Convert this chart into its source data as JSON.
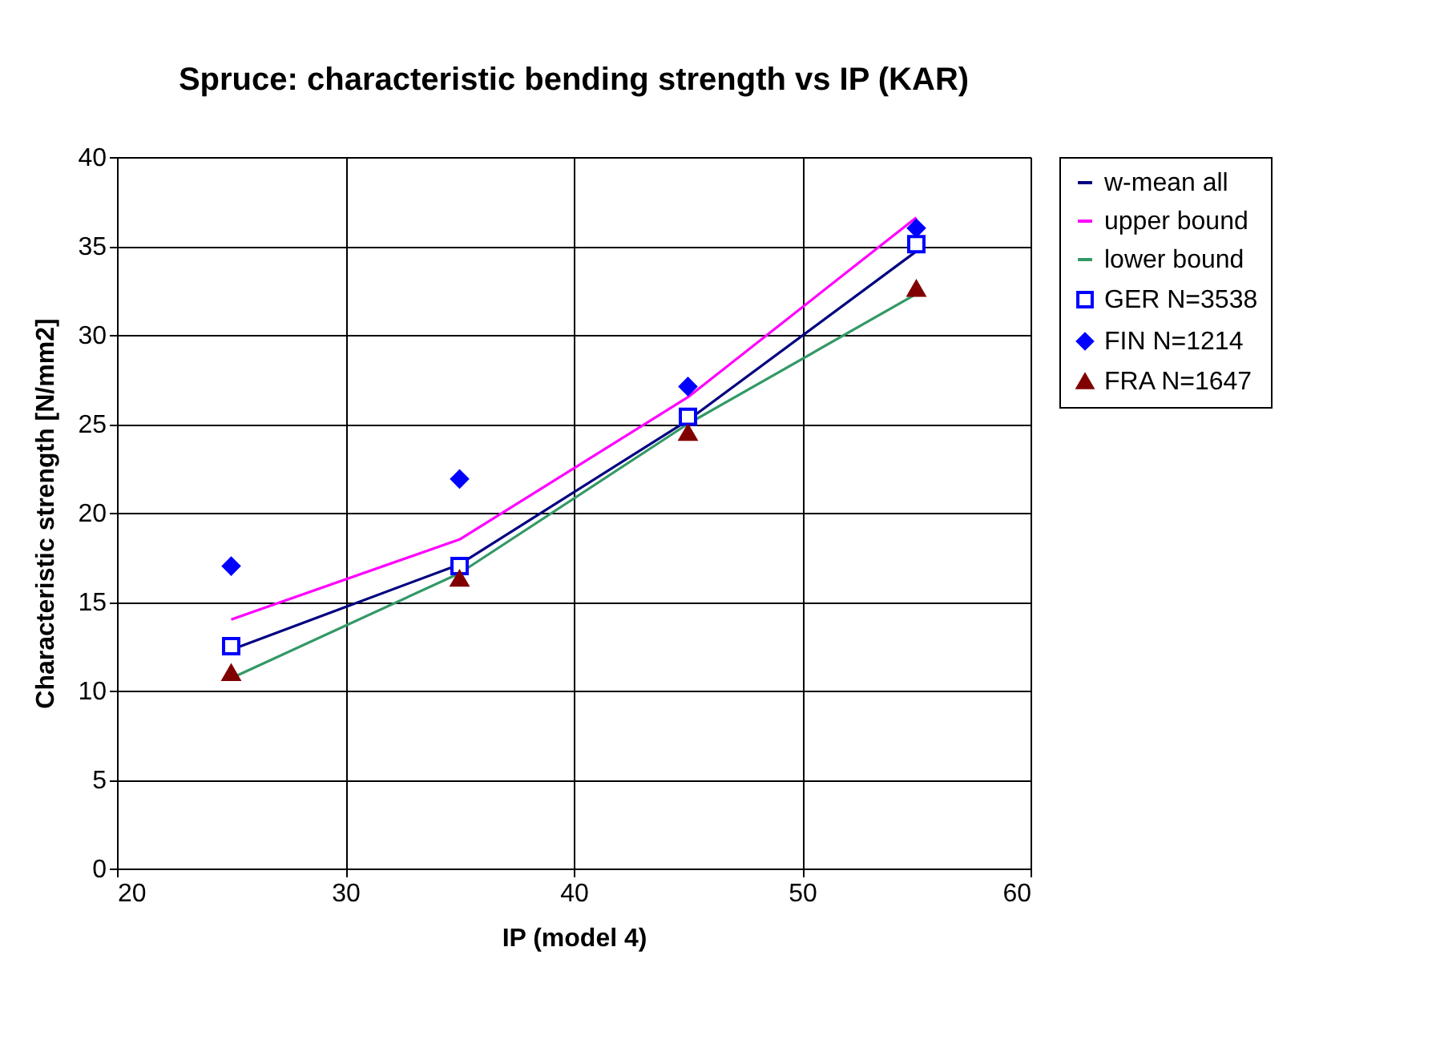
{
  "chart_data": {
    "type": "line",
    "title": "Spruce: characteristic bending strength vs IP (KAR)",
    "xlabel": "IP (model 4)",
    "ylabel": "Characteristic strength [N/mm2]",
    "x": [
      25,
      35,
      45,
      55
    ],
    "series": [
      {
        "name": "w-mean all",
        "color": "#000080",
        "marker": "none",
        "values": [
          12.3,
          17.1,
          25.2,
          34.7
        ]
      },
      {
        "name": "upper bound",
        "color": "#ff00ff",
        "marker": "none",
        "values": [
          14.0,
          18.5,
          26.5,
          36.6
        ]
      },
      {
        "name": "lower bound",
        "color": "#339966",
        "marker": "none",
        "values": [
          10.7,
          16.6,
          25.0,
          32.3
        ]
      },
      {
        "name": "GER N=3538",
        "type": "scatter",
        "color": "#0000ff",
        "marker": "square",
        "values": [
          12.5,
          17.0,
          25.4,
          35.1
        ]
      },
      {
        "name": "FIN N=1214",
        "type": "scatter",
        "color": "#0000ff",
        "marker": "diamond",
        "values": [
          17.0,
          21.9,
          27.1,
          36.0
        ]
      },
      {
        "name": "FRA N=1647",
        "type": "scatter",
        "color": "#800000",
        "marker": "triangle",
        "values": [
          11.0,
          16.3,
          24.5,
          32.6
        ]
      }
    ],
    "xlim": [
      20,
      60
    ],
    "xticks": [
      20,
      30,
      40,
      50,
      60
    ],
    "ylim": [
      0,
      40
    ],
    "yticks": [
      0,
      5,
      10,
      15,
      20,
      25,
      30,
      35,
      40
    ],
    "grid": true,
    "legend": "right",
    "line_style": "solid"
  }
}
